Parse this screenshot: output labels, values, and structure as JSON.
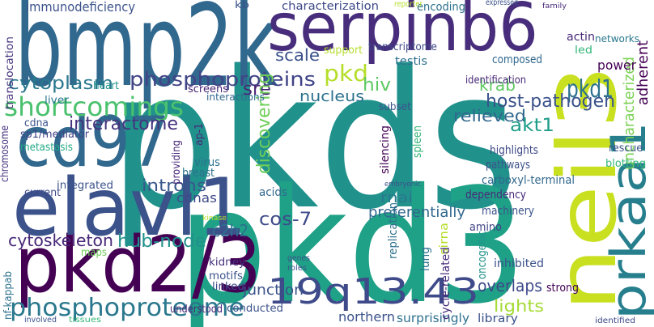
{
  "words": [
    "pkds",
    "pkd3",
    "bmp2k",
    "serpinb6",
    "neil3",
    "pkd2/3",
    "elavl1",
    "cd97",
    "prkaa1",
    "19q13.43",
    "phosphoproteome",
    "shortcomings",
    "phosphoproteins",
    "pkd1",
    "host-pathogen",
    "cytoplasm",
    "interactome",
    "cytoskeleton",
    "hub-node",
    "krab",
    "pkd",
    "sre",
    "scale",
    "hiv",
    "relieved",
    "akt1",
    "nucleus",
    "discovering",
    "introns",
    "cdnas",
    "cos-7",
    "c2h2",
    "rnai",
    "preferentially",
    "junction",
    "northern",
    "lights",
    "overlaps",
    "surprisingly",
    "library",
    "uncharacterized",
    "adherent",
    "immunodeficiency",
    "characterization",
    "encoding",
    "actin",
    "networks",
    "power",
    "led",
    "support",
    "transcriptome",
    "testis",
    "composed",
    "identification",
    "translocation",
    "heart",
    "liver",
    "screens",
    "interactions",
    "cdna",
    "sp1/mediator",
    "metastasis",
    "chromosome",
    "ap-1",
    "providing",
    "virus",
    "breast",
    "integrated",
    "current",
    "acids",
    "amino",
    "machinery",
    "dependency",
    "carboxyl-terminal",
    "pathways",
    "highlights",
    "rescue",
    "blotting",
    "subset",
    "silencing",
    "spleen",
    "replication",
    "lung",
    "sirna",
    "cycle-related",
    "oncogenic",
    "inhibited",
    "strong",
    "maps",
    "kidney",
    "motifs",
    "linked",
    "conducted",
    "understood",
    "nf-kappab",
    "involved",
    "tissues",
    "identified",
    "kb",
    "reporter",
    "expressed",
    "family",
    "genes",
    "roles",
    "kinase",
    "embryonic"
  ]
}
